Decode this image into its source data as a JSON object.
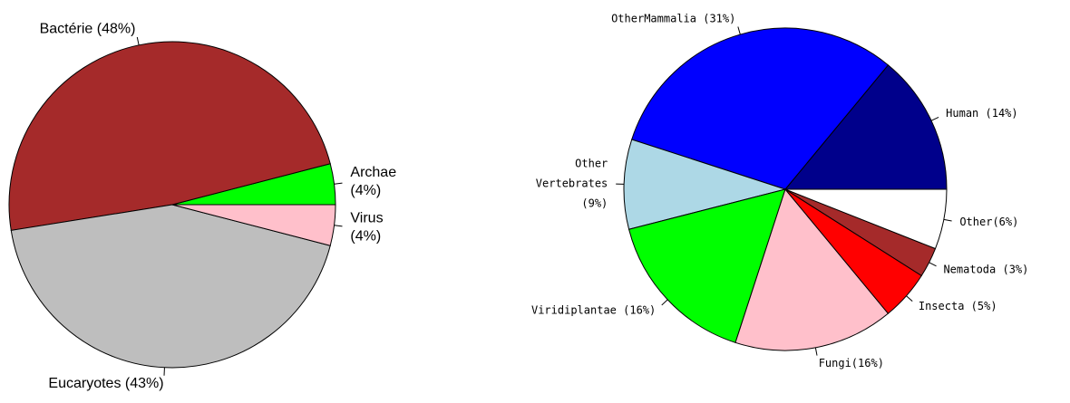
{
  "chart_data": [
    {
      "type": "pie",
      "labels": [
        [
          "Archae",
          "(4%)"
        ],
        [
          "Bactérie (48%)"
        ],
        [
          "Eucaryotes (43%)"
        ],
        [
          "Virus",
          "(4%)"
        ]
      ],
      "values": [
        4,
        48,
        43,
        4
      ],
      "colors": [
        "#00ff00",
        "#a52a2a",
        "#bebebe",
        "#ffc0cb"
      ]
    },
    {
      "type": "pie",
      "labels": [
        [
          "Human (14%)"
        ],
        [
          "OtherMammalia (31%)"
        ],
        [
          "Other",
          "Vertebrates",
          "(9%)"
        ],
        [
          "Viridiplantae (16%)"
        ],
        [
          "Fungi(16%)"
        ],
        [
          "Insecta (5%)"
        ],
        [
          "Nematoda (3%)"
        ],
        [
          "Other(6%)"
        ]
      ],
      "values": [
        14,
        31,
        9,
        16,
        16,
        5,
        3,
        6
      ],
      "colors": [
        "#00008b",
        "#0000ff",
        "#add8e6",
        "#00ff00",
        "#ffc0cb",
        "#ff0000",
        "#a52a2a",
        "#ffffff"
      ]
    }
  ]
}
